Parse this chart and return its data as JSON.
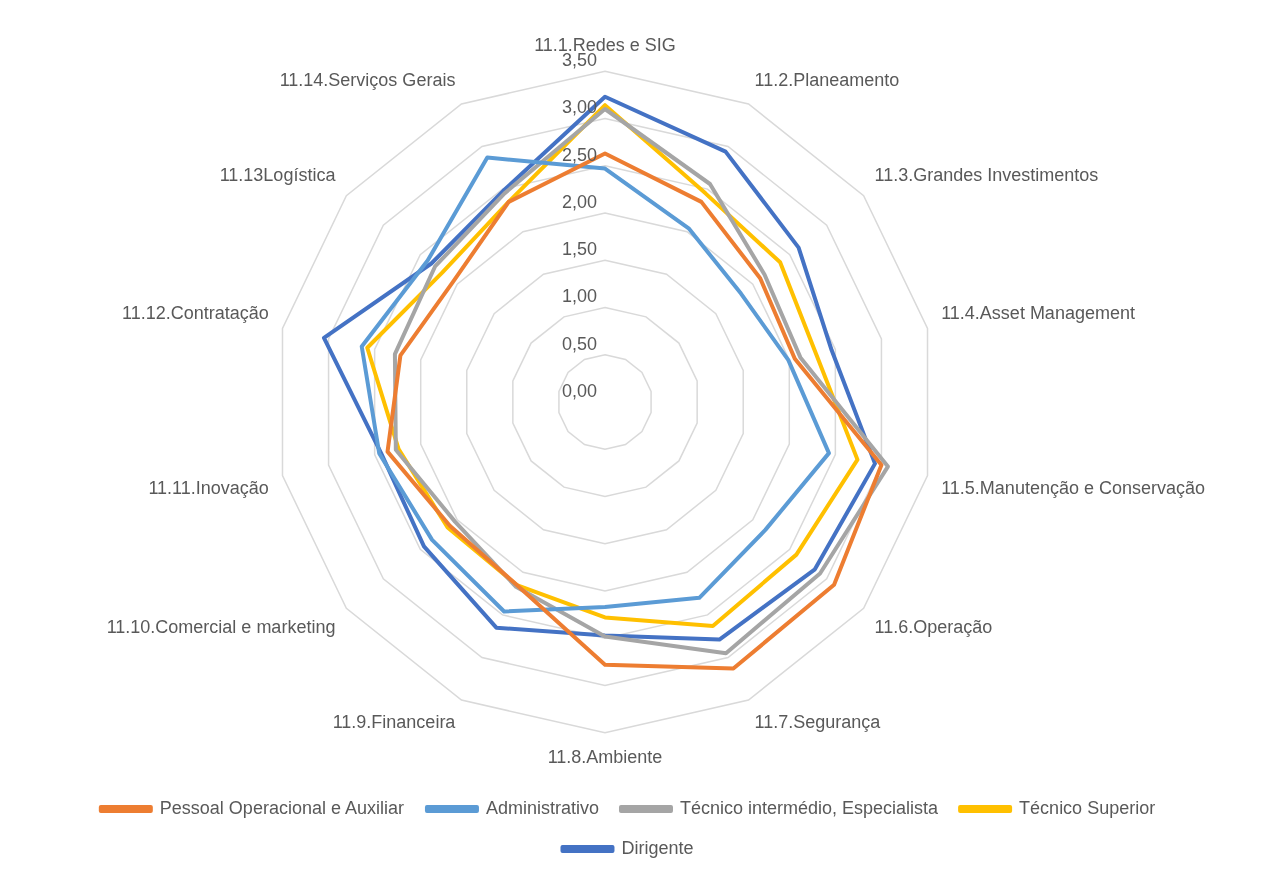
{
  "chart_data": {
    "type": "radar",
    "categories": [
      "11.1.Redes e SIG",
      "11.2.Planeamento",
      "11.3.Grandes Investimentos",
      "11.4.Asset Management",
      "11.5.Manutenção e Conservação",
      "11.6.Operação",
      "11.7.Segurança",
      "11.8.Ambiente",
      "11.9.Financeira",
      "11.10.Comercial e marketing",
      "11.11.Inovação",
      "11.12.Contratação",
      "11.13Logística",
      "11.14.Serviços Gerais"
    ],
    "series": [
      {
        "name": "Pessoal Operacional e Auxiliar",
        "color": "#ed7d31",
        "values": [
          2.63,
          2.35,
          2.1,
          2.06,
          3.0,
          3.1,
          3.13,
          2.78,
          2.15,
          2.1,
          2.36,
          2.22,
          2.05,
          2.35
        ]
      },
      {
        "name": "Administrativo",
        "color": "#5b9bd5",
        "values": [
          2.47,
          2.04,
          1.84,
          1.99,
          2.43,
          2.17,
          2.3,
          2.17,
          2.46,
          2.34,
          2.45,
          2.64,
          2.4,
          2.87
        ]
      },
      {
        "name": "Técnico intermédio, Especialista",
        "color": "#a5a5a5",
        "values": [
          3.1,
          2.56,
          2.16,
          2.12,
          3.07,
          2.91,
          2.95,
          2.48,
          2.17,
          2.03,
          2.27,
          2.28,
          2.3,
          2.45
        ]
      },
      {
        "name": "Técnico Superior",
        "color": "#ffc000",
        "values": [
          3.14,
          2.45,
          2.37,
          2.29,
          2.74,
          2.59,
          2.63,
          2.28,
          2.15,
          2.13,
          2.24,
          2.58,
          2.2,
          2.35
        ]
      },
      {
        "name": "Dirigente",
        "color": "#4472c4",
        "values": [
          3.23,
          2.94,
          2.62,
          2.46,
          2.93,
          2.84,
          2.79,
          2.47,
          2.65,
          2.45,
          2.43,
          3.05,
          2.35,
          2.48
        ]
      }
    ],
    "ylim": [
      0,
      3.5
    ],
    "yticks": [
      {
        "value": 0,
        "label": "0,00"
      },
      {
        "value": 0.5,
        "label": "0,50"
      },
      {
        "value": 1,
        "label": "1,00"
      },
      {
        "value": 1.5,
        "label": "1,50"
      },
      {
        "value": 2,
        "label": "2,00"
      },
      {
        "value": 2.5,
        "label": "2,50"
      },
      {
        "value": 3,
        "label": "3,00"
      },
      {
        "value": 3.5,
        "label": "3,50"
      }
    ],
    "grid": true,
    "legend": "bottom",
    "marker": "none",
    "line_style": "solid"
  }
}
